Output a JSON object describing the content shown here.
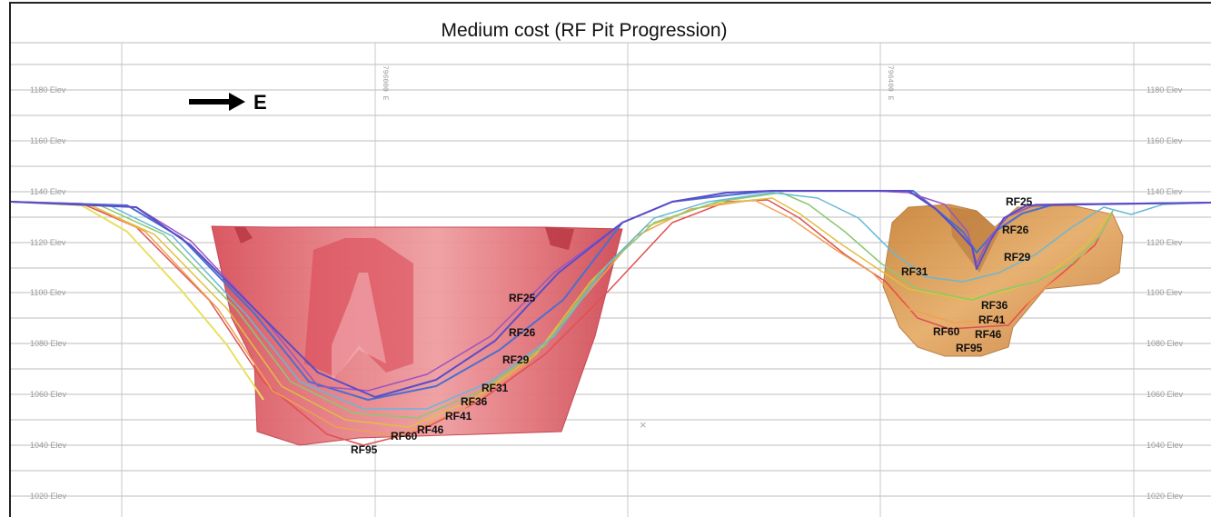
{
  "title": "Medium cost (RF Pit Progression)",
  "direction_label": "E",
  "elevation_labels": [
    "1180 Elev",
    "1160 Elev",
    "1140 Elev",
    "1120 Elev",
    "1100 Elev",
    "1080 Elev",
    "1060 Elev",
    "1040 Elev",
    "1020 Elev"
  ],
  "northing_labels": [
    "796000 E",
    "796400 E"
  ],
  "center_marker": "×",
  "west_pit_labels": [
    "RF25",
    "RF26",
    "RF29",
    "RF31",
    "RF36",
    "RF41",
    "RF46",
    "RF60",
    "RF95"
  ],
  "east_pit_labels": [
    "RF25",
    "RF26",
    "RF29",
    "RF31",
    "RF36",
    "RF41",
    "RF46",
    "RF60",
    "RF95"
  ],
  "colors": {
    "RF25": "#5a4cc8",
    "RF26": "#9a54c0",
    "RF29": "#4a6fd0",
    "RF31": "#66b8d8",
    "RF36": "#8cc870",
    "RF41": "#e0c040",
    "RF46": "#f0a050",
    "RF60": "#e05050",
    "RF95": "#e8e060",
    "west_solid": "#e0606a",
    "east_solid": "#d99a50"
  }
}
